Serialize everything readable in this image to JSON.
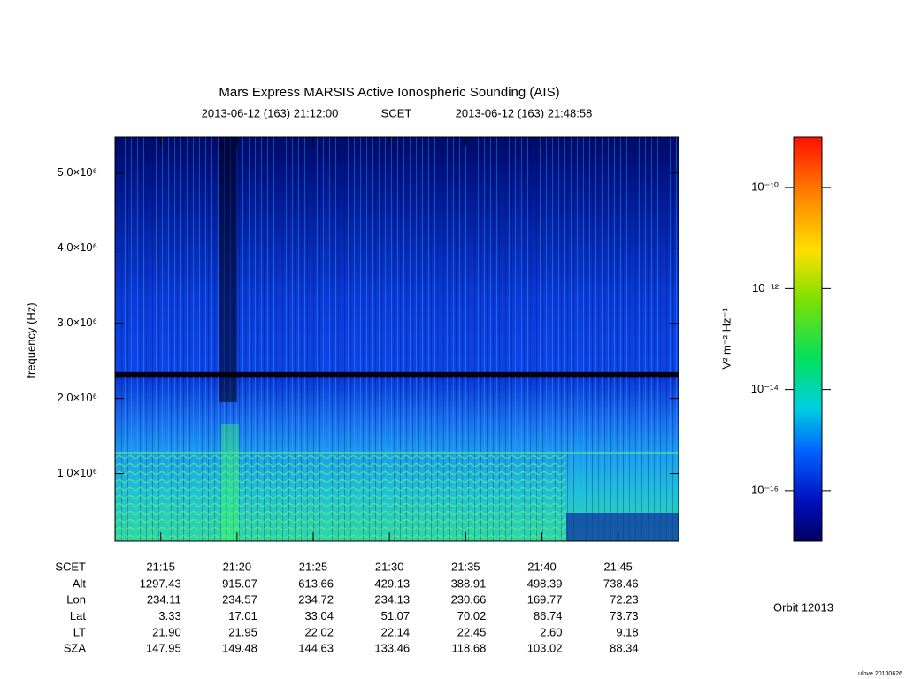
{
  "chart_data": {
    "type": "spectrogram",
    "title": "Mars Express MARSIS Active Ionospheric Sounding (AIS)",
    "start_time": "2013-06-12 (163) 21:12:00",
    "time_system": "SCET",
    "end_time": "2013-06-12 (163) 21:48:58",
    "y_label": "frequency (Hz)",
    "xlim": [
      "21:12:00",
      "21:48:58"
    ],
    "xticks": [
      "21:15",
      "21:20",
      "21:25",
      "21:30",
      "21:35",
      "21:40",
      "21:45"
    ],
    "ylim": [
      100000,
      5480000
    ],
    "yticks": [
      {
        "value": 1000000,
        "label": "1.0×10⁶"
      },
      {
        "value": 2000000,
        "label": "2.0×10⁶"
      },
      {
        "value": 3000000,
        "label": "3.0×10⁶"
      },
      {
        "value": 4000000,
        "label": "4.0×10⁶"
      },
      {
        "value": 5000000,
        "label": "5.0×10⁶"
      }
    ],
    "colorbar": {
      "label": "V² m⁻² Hz⁻¹",
      "log_scale": true,
      "lim": [
        1e-17,
        1e-09
      ],
      "ticks": [
        {
          "value": 1e-10,
          "label": "10⁻¹⁰"
        },
        {
          "value": 1e-12,
          "label": "10⁻¹²"
        },
        {
          "value": 1e-14,
          "label": "10⁻¹⁴"
        },
        {
          "value": 1e-16,
          "label": "10⁻¹⁶"
        }
      ]
    },
    "ephemeris": {
      "time_label": "SCET",
      "rows": [
        {
          "label": "Alt",
          "values": [
            "1297.43",
            "915.07",
            "613.66",
            "429.13",
            "388.91",
            "498.39",
            "738.46"
          ]
        },
        {
          "label": "Lon",
          "values": [
            "234.11",
            "234.57",
            "234.72",
            "234.13",
            "230.66",
            "169.77",
            "72.23"
          ]
        },
        {
          "label": "Lat",
          "values": [
            "3.33",
            "17.01",
            "33.04",
            "51.07",
            "70.02",
            "86.74",
            "73.73"
          ]
        },
        {
          "label": "LT",
          "values": [
            "21.90",
            "21.95",
            "22.02",
            "22.14",
            "22.45",
            "2.60",
            "9.18"
          ]
        },
        {
          "label": "SZA",
          "values": [
            "147.95",
            "149.48",
            "144.63",
            "133.46",
            "118.68",
            "103.02",
            "88.34"
          ]
        }
      ]
    },
    "orbit": "Orbit 12013",
    "credit": "ulove 20130626"
  }
}
